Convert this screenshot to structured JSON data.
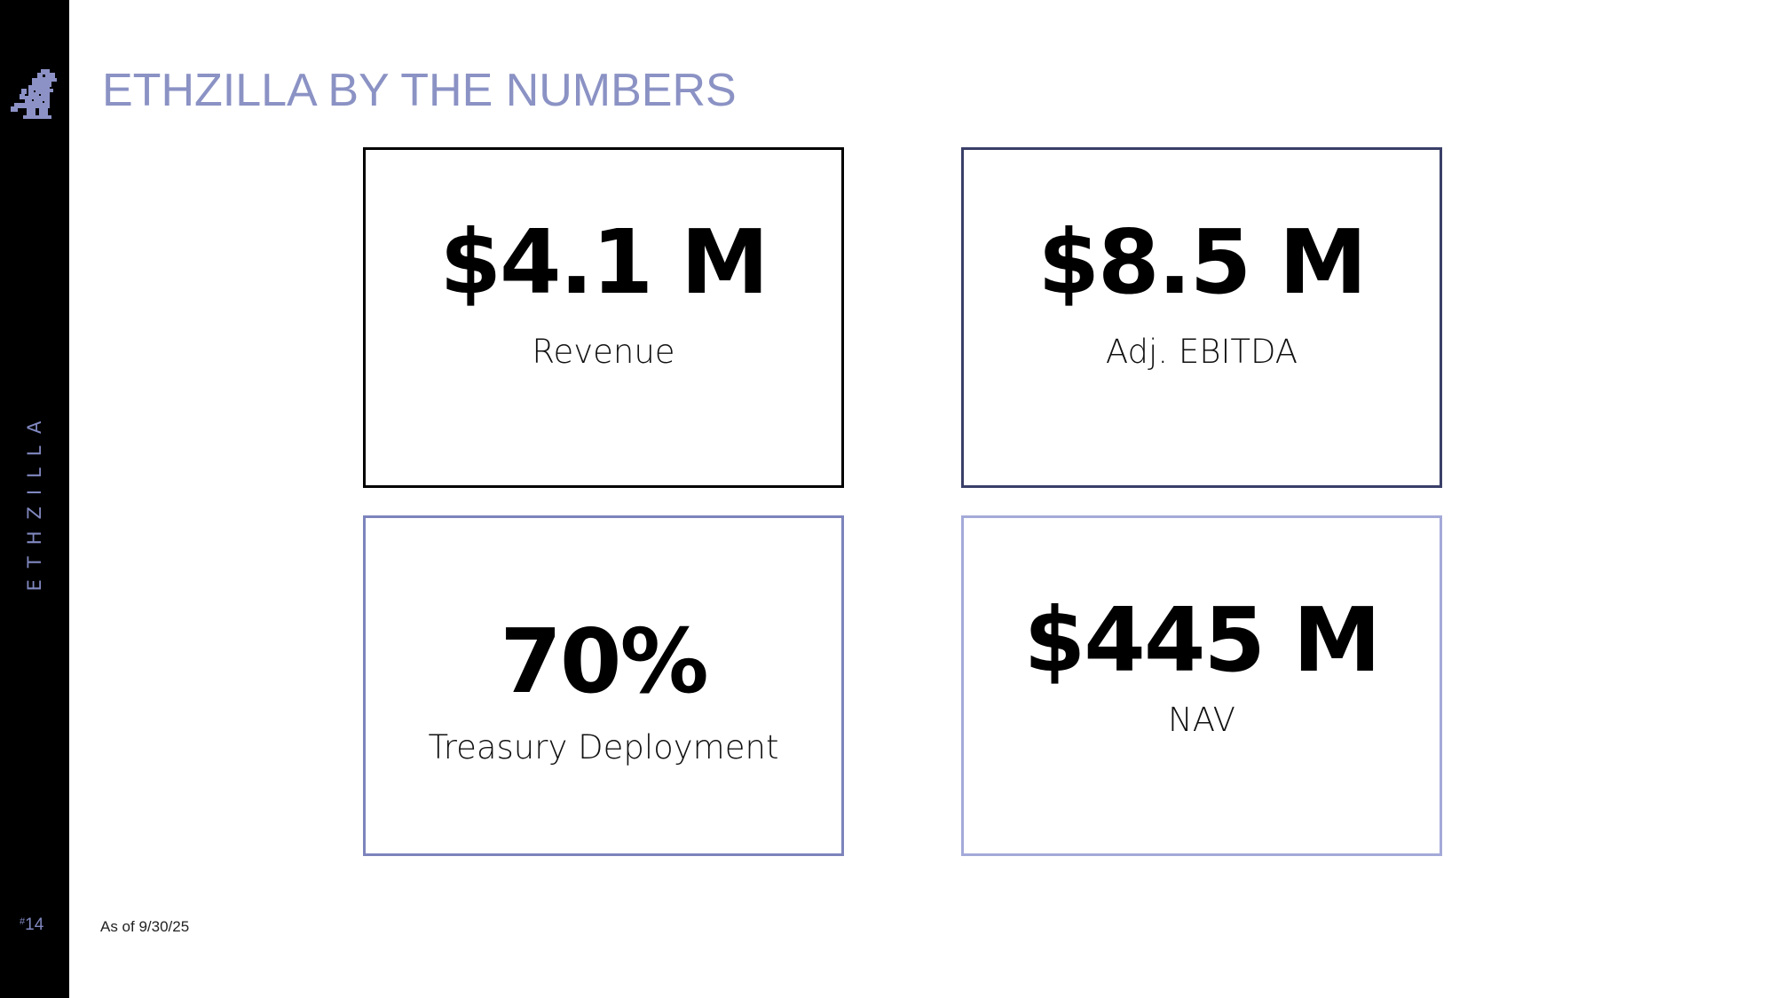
{
  "sidebar": {
    "brand": "ETHZILLA",
    "page_number": {
      "mark": "#",
      "number": "14"
    },
    "logo_icon": "pixel-godzilla-icon",
    "accent_color": "#8088c0"
  },
  "header": {
    "title": "ETHZILLA BY THE NUMBERS",
    "title_color": "#8b92c4"
  },
  "metrics": [
    {
      "value": "$4.1 M",
      "label": "Revenue",
      "border_color": "#000000"
    },
    {
      "value": "$8.5 M",
      "label": "Adj. EBITDA",
      "border_color": "#3a3f68"
    },
    {
      "value": "70%",
      "label": "Treasury Deployment",
      "border_color": "#7d84bc"
    },
    {
      "value": "$445 M",
      "label": "NAV",
      "border_color": "#a4aad8"
    }
  ],
  "footnote": "As of 9/30/25"
}
